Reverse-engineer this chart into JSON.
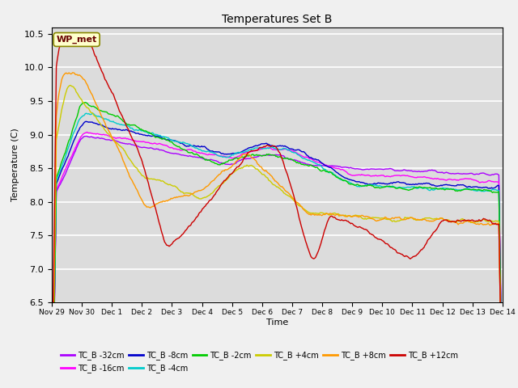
{
  "title": "Temperatures Set B",
  "xlabel": "Time",
  "ylabel": "Temperature (C)",
  "ylim": [
    6.5,
    10.6
  ],
  "bg_color": "#dcdcdc",
  "fig_bg_color": "#f0f0f0",
  "series_colors": {
    "TC_B -32cm": "#aa00ff",
    "TC_B -16cm": "#ff00ff",
    "TC_B -8cm": "#0000cc",
    "TC_B -4cm": "#00cccc",
    "TC_B -2cm": "#00cc00",
    "TC_B +4cm": "#cccc00",
    "TC_B +8cm": "#ff9900",
    "TC_B +12cm": "#cc0000"
  },
  "xtick_labels": [
    "Nov 29",
    "Nov 30",
    "Dec 1",
    "Dec 2",
    "Dec 3",
    "Dec 4",
    "Dec 5",
    "Dec 6",
    "Dec 7",
    "Dec 8",
    "Dec 9",
    "Dec 10",
    "Dec 11",
    "Dec 12",
    "Dec 13",
    "Dec 14"
  ],
  "wp_met_label": "WP_met",
  "grid_color": "#ffffff",
  "line_width": 1.0
}
